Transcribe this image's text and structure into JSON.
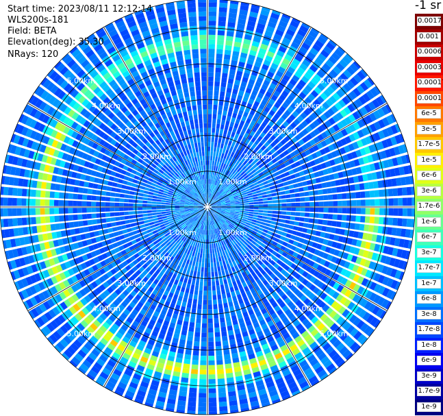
{
  "info": {
    "start_time": "Start time: 2023/08/11 12:12:14",
    "instrument": "WLS200s-181",
    "field": "Field: BETA",
    "elevation": "Elevation(deg): 35.30",
    "nrays": "NRays: 120"
  },
  "chart_data": {
    "type": "heatmap",
    "projection": "polar (PPI scan)",
    "n_rays": 120,
    "range_rings_km": [
      1.0,
      2.0,
      3.0,
      4.0,
      5.0
    ],
    "range_ring_labels": [
      "1.00km",
      "2.00km",
      "3.00km",
      "4.00km",
      "5.00km"
    ],
    "max_range_km": 5.8,
    "ring_label_angles_deg": [
      45,
      135,
      225,
      315
    ],
    "radial_spokes_deg": [
      0,
      30,
      60,
      90,
      120,
      150,
      180,
      210,
      240,
      270,
      300,
      330
    ],
    "colorbar": {
      "title": "-1 sr",
      "labels": [
        "0.0017",
        "0.001",
        "0.0006",
        "0.0003",
        "0.00017",
        "0.0001",
        "6e-5",
        "3e-5",
        "1.7e-5",
        "1e-5",
        "6e-6",
        "3e-6",
        "1.7e-6",
        "1e-6",
        "6e-7",
        "3e-7",
        "1.7e-7",
        "1e-7",
        "6e-8",
        "3e-8",
        "1.7e-8",
        "1e-8",
        "6e-9",
        "3e-9",
        "1.7e-9",
        "1e-9"
      ],
      "colors": [
        "#7f0000",
        "#a00000",
        "#c80000",
        "#e80000",
        "#ff1800",
        "#ff4800",
        "#ff7800",
        "#ffa000",
        "#ffc800",
        "#fff000",
        "#e0ff18",
        "#b8ff40",
        "#90ff68",
        "#68ff90",
        "#40ffb8",
        "#18ffe0",
        "#00e8ff",
        "#00c0ff",
        "#0098ff",
        "#0070ff",
        "#0048ff",
        "#0020ff",
        "#0000f0",
        "#0000c8",
        "#0000a0",
        "#000080"
      ]
    },
    "features": {
      "high_backscatter_ring_km": 4.6,
      "high_backscatter_ring_level": "1e-5 to 6e-5",
      "background_level": "3e-8 to 1.7e-7"
    }
  }
}
